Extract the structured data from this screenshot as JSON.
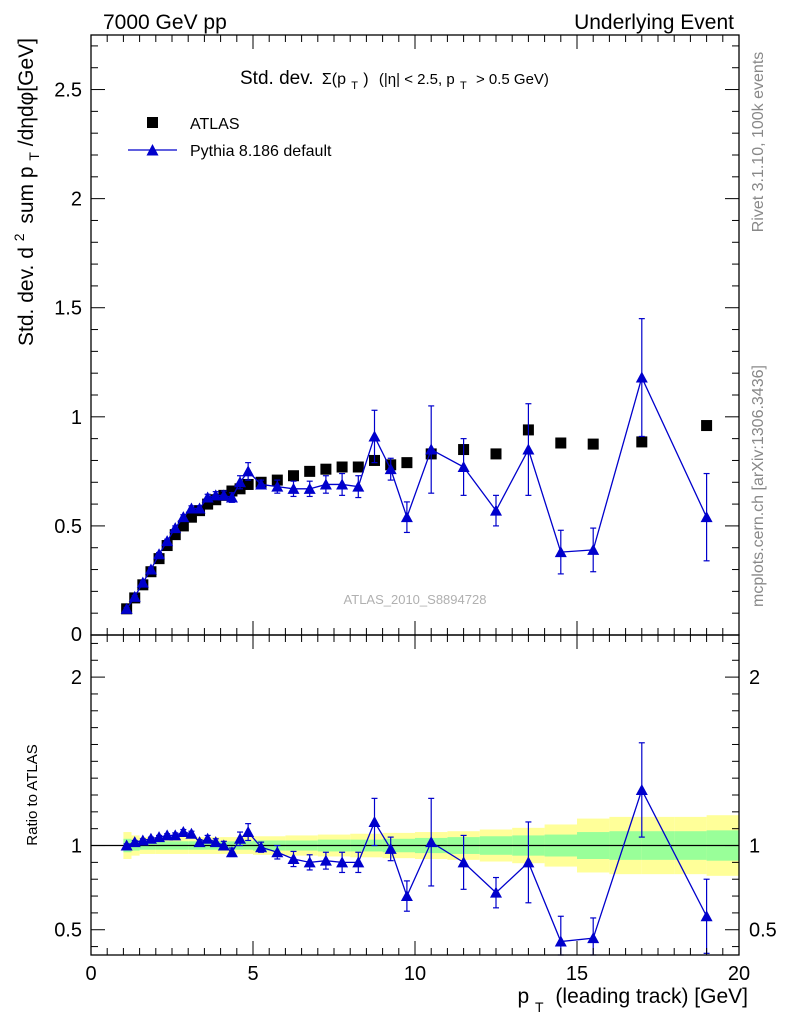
{
  "header": {
    "left": "7000 GeV pp",
    "right": "Underlying Event"
  },
  "side": {
    "rivet": "Rivet 3.1.10,  100k events",
    "mcplots": "mcplots.cern.ch [arXiv:1306.3436]"
  },
  "chart_data": [
    {
      "type": "scatter",
      "title_main": "Std. dev.",
      "title_sym": "Σ(p",
      "title_sym_sub": "T",
      "title_close": ")",
      "title_rest1": "(|η| < 2.5, p",
      "title_rest_sub": "T",
      "title_rest2": "> 0.5 GeV)",
      "ylabel_a": "Std. dev. d",
      "ylabel_sup": "2",
      "ylabel_b": "sum p",
      "ylabel_sub": "T",
      "ylabel_c": "/dηdφ[GeV]",
      "watermark": "ATLAS_2010_S8894728",
      "xlim": [
        0,
        20
      ],
      "ylim": [
        0,
        2.75
      ],
      "yticks": [
        0.5,
        1,
        1.5,
        2,
        2.5
      ],
      "ytick_labels": [
        "0.5",
        "1",
        "1.5",
        "2",
        "2.5"
      ],
      "ytick_zero": "0",
      "legend_position": "top-left",
      "series": [
        {
          "name": "ATLAS",
          "color": "#000000",
          "marker": "square",
          "x": [
            1.1,
            1.35,
            1.6,
            1.85,
            2.1,
            2.35,
            2.6,
            2.85,
            3.1,
            3.35,
            3.6,
            3.85,
            4.1,
            4.35,
            4.6,
            4.85,
            5.25,
            5.75,
            6.25,
            6.75,
            7.25,
            7.75,
            8.25,
            8.75,
            9.25,
            9.75,
            10.5,
            11.5,
            12.5,
            13.5,
            14.5,
            15.5,
            17.0,
            19.0
          ],
          "y": [
            0.12,
            0.17,
            0.23,
            0.29,
            0.35,
            0.41,
            0.46,
            0.5,
            0.54,
            0.57,
            0.6,
            0.62,
            0.64,
            0.66,
            0.67,
            0.69,
            0.7,
            0.71,
            0.73,
            0.75,
            0.76,
            0.77,
            0.77,
            0.8,
            0.78,
            0.79,
            0.83,
            0.85,
            0.83,
            0.94,
            0.88,
            0.875,
            0.885,
            0.96
          ]
        },
        {
          "name": "Pythia 8.186 default",
          "color": "#0000cc",
          "marker": "triangle",
          "x": [
            1.1,
            1.35,
            1.6,
            1.85,
            2.1,
            2.35,
            2.6,
            2.85,
            3.1,
            3.35,
            3.6,
            3.85,
            4.1,
            4.35,
            4.6,
            4.85,
            5.25,
            5.75,
            6.25,
            6.75,
            7.25,
            7.75,
            8.25,
            8.75,
            9.25,
            9.75,
            10.5,
            11.5,
            12.5,
            13.5,
            14.5,
            15.5,
            17.0,
            19.0
          ],
          "y": [
            0.12,
            0.175,
            0.24,
            0.3,
            0.37,
            0.43,
            0.49,
            0.54,
            0.58,
            0.58,
            0.63,
            0.64,
            0.64,
            0.63,
            0.7,
            0.75,
            0.69,
            0.68,
            0.67,
            0.67,
            0.69,
            0.69,
            0.68,
            0.91,
            0.76,
            0.54,
            0.85,
            0.77,
            0.57,
            0.85,
            0.38,
            0.39,
            1.18,
            0.54
          ],
          "err": [
            0.006,
            0.006,
            0.007,
            0.008,
            0.008,
            0.009,
            0.01,
            0.011,
            0.012,
            0.013,
            0.015,
            0.017,
            0.02,
            0.022,
            0.03,
            0.04,
            0.02,
            0.03,
            0.035,
            0.035,
            0.04,
            0.05,
            0.05,
            0.12,
            0.05,
            0.07,
            0.2,
            0.13,
            0.07,
            0.21,
            0.1,
            0.1,
            0.27,
            0.2
          ]
        }
      ]
    },
    {
      "type": "scatter",
      "ylabel": "Ratio to ATLAS",
      "xlabel_a": "p",
      "xlabel_sub": "T",
      "xlabel_b": "(leading track) [GeV]",
      "xlim": [
        0,
        20
      ],
      "ylim": [
        0.35,
        2.25
      ],
      "yticks": [
        0.5,
        1,
        2
      ],
      "ytick_labels": [
        "0.5",
        "1",
        "2"
      ],
      "xticks": [
        0,
        5,
        10,
        15,
        20
      ],
      "xtick_labels": [
        "0",
        "5",
        "10",
        "15",
        "20"
      ],
      "reference_line": 1,
      "bands": {
        "edges": [
          1.0,
          1.25,
          1.5,
          2.0,
          2.5,
          3.0,
          4.0,
          5.0,
          6.0,
          7.0,
          8.0,
          9.0,
          10.0,
          11.0,
          12.0,
          13.0,
          14.0,
          15.0,
          16.0,
          17.0,
          18.0,
          19.0,
          20.0
        ],
        "outer": [
          0.08,
          0.06,
          0.05,
          0.05,
          0.05,
          0.05,
          0.05,
          0.055,
          0.06,
          0.065,
          0.07,
          0.075,
          0.08,
          0.085,
          0.095,
          0.105,
          0.125,
          0.16,
          0.17,
          0.17,
          0.17,
          0.18
        ],
        "inner": [
          0.04,
          0.03,
          0.025,
          0.025,
          0.025,
          0.025,
          0.025,
          0.03,
          0.03,
          0.035,
          0.035,
          0.04,
          0.045,
          0.05,
          0.055,
          0.06,
          0.065,
          0.08,
          0.085,
          0.085,
          0.085,
          0.09
        ],
        "outer_color": "#ffff99",
        "inner_color": "#99ff99"
      },
      "series": [
        {
          "name": "Pythia 8.186 default",
          "color": "#0000cc",
          "marker": "triangle",
          "x": [
            1.1,
            1.35,
            1.6,
            1.85,
            2.1,
            2.35,
            2.6,
            2.85,
            3.1,
            3.35,
            3.6,
            3.85,
            4.1,
            4.35,
            4.6,
            4.85,
            5.25,
            5.75,
            6.25,
            6.75,
            7.25,
            7.75,
            8.25,
            8.75,
            9.25,
            9.75,
            10.5,
            11.5,
            12.5,
            13.5,
            14.5,
            15.5,
            17.0,
            19.0
          ],
          "y": [
            1.0,
            1.02,
            1.03,
            1.04,
            1.05,
            1.06,
            1.06,
            1.08,
            1.07,
            1.02,
            1.04,
            1.02,
            1.0,
            0.96,
            1.04,
            1.08,
            0.99,
            0.96,
            0.92,
            0.9,
            0.91,
            0.9,
            0.9,
            1.14,
            0.98,
            0.7,
            1.02,
            0.9,
            0.72,
            0.9,
            0.43,
            0.45,
            1.33,
            0.58
          ],
          "err": [
            0.01,
            0.01,
            0.01,
            0.01,
            0.01,
            0.01,
            0.015,
            0.015,
            0.015,
            0.015,
            0.02,
            0.02,
            0.025,
            0.025,
            0.04,
            0.05,
            0.03,
            0.04,
            0.045,
            0.045,
            0.05,
            0.06,
            0.06,
            0.14,
            0.07,
            0.09,
            0.26,
            0.16,
            0.09,
            0.24,
            0.15,
            0.12,
            0.28,
            0.22
          ]
        }
      ]
    }
  ]
}
